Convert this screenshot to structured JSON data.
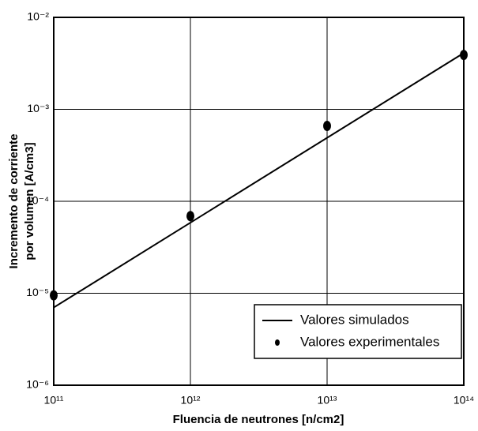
{
  "chart_data": {
    "type": "line",
    "xlabel": "Fluencia de neutrones [n/cm2]",
    "ylabel": [
      "Incremento de corriente",
      "por volumen [A/cm3]"
    ],
    "log_x": true,
    "log_y": true,
    "grid": true,
    "legend": "lower right",
    "xlim": [
      100000000000.0,
      100000000000000.0
    ],
    "xticks": [
      {
        "value": 100000000000.0,
        "label": "10¹¹"
      },
      {
        "value": 1000000000000.0,
        "label": "10¹²"
      },
      {
        "value": 10000000000000.0,
        "label": "10¹³"
      },
      {
        "value": 100000000000000.0,
        "label": "10¹⁴"
      }
    ],
    "ylim": [
      1e-06,
      0.01
    ],
    "yticks": [
      {
        "value": 1e-06,
        "label": "10⁻⁶"
      },
      {
        "value": 1e-05,
        "label": "10⁻⁵"
      },
      {
        "value": 0.0001,
        "label": "10⁻⁴"
      },
      {
        "value": 0.001,
        "label": "10⁻³"
      },
      {
        "value": 0.01,
        "label": "10⁻²"
      }
    ],
    "series": [
      {
        "name": "Valores simulados",
        "style": "line",
        "color": "#000000",
        "x": [
          100000000000.0,
          100000000000000.0
        ],
        "values": [
          7e-06,
          0.0041
        ]
      },
      {
        "name": "Valores experimentales",
        "style": "marker",
        "color": "#000000",
        "x": [
          100000000000.0,
          1000000000000.0,
          10000000000000.0,
          100000000000000.0
        ],
        "values": [
          9.5e-06,
          6.9e-05,
          0.00066,
          0.0039
        ]
      }
    ]
  }
}
